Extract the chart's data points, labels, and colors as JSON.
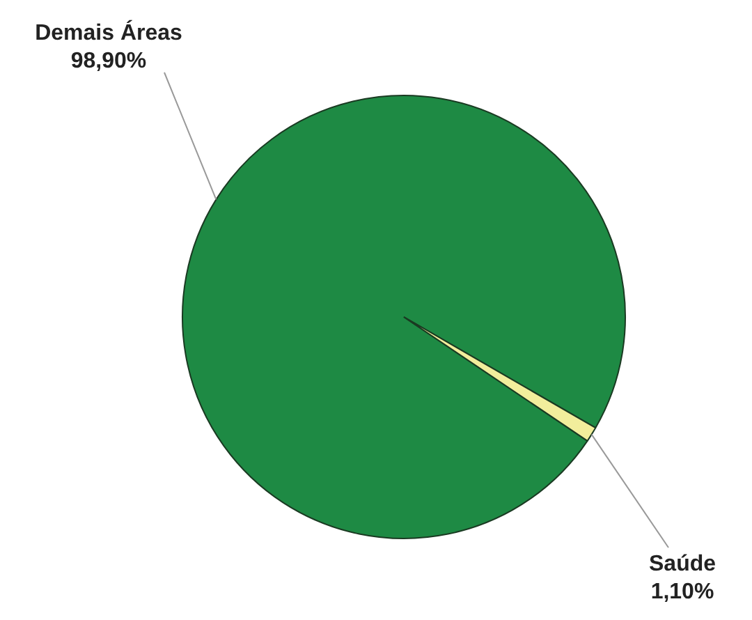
{
  "chart_data": {
    "type": "pie",
    "categories": [
      "Demais Áreas",
      "Saúde"
    ],
    "values": [
      98.9,
      1.1
    ],
    "colors": [
      "#1e8a44",
      "#f2ee9c"
    ],
    "value_labels": [
      "98,90%",
      "1,10%"
    ],
    "legend": false
  }
}
